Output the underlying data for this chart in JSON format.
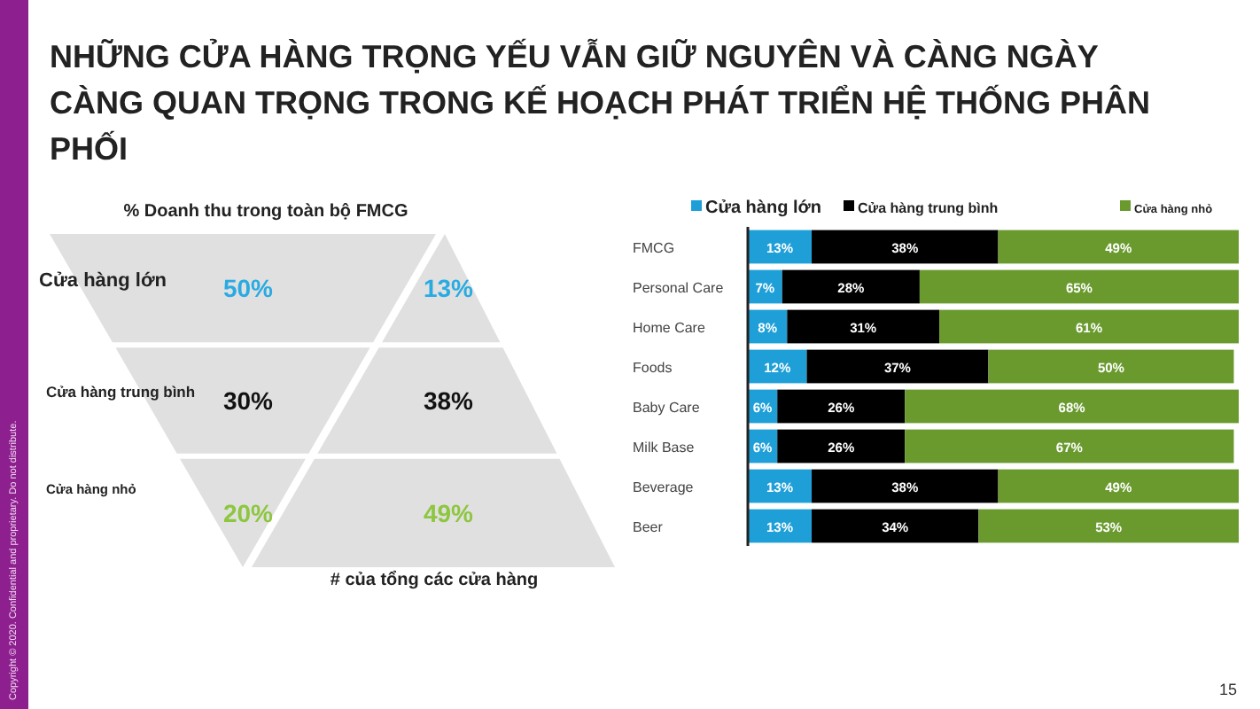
{
  "chart_data": [
    {
      "type": "other",
      "title": "NHỮNG CỬA HÀNG TRỌNG YẾU VẪN GIỮ NGUYÊN VÀ CÀNG NGÀY CÀNG QUAN TRỌNG TRONG KẾ HOẠCH PHÁT TRIỂN HỆ THỐNG PHÂN PHỐI",
      "subtitle": "% Doanh thu trong toàn bộ FMCG",
      "xlabel": "# của tổng các cửa hàng",
      "categories": [
        "Cửa hàng lớn",
        "Cửa hàng trung bình",
        "Cửa hàng nhỏ"
      ],
      "colors": [
        "#29abe2",
        "#111111",
        "#8dc63f"
      ],
      "series": [
        {
          "values": [
            50,
            30,
            20
          ],
          "value_labels": [
            "50%",
            "30%",
            "20%"
          ]
        },
        {
          "values": [
            13,
            38,
            49
          ],
          "value_labels": [
            "13%",
            "38%",
            "49%"
          ]
        }
      ],
      "annotations": [
        "Copyright © 2020. Confidential and proprietary. Do not distribute."
      ]
    },
    {
      "type": "bar",
      "orientation": "horizontal",
      "stacked": true,
      "legend": "top",
      "tick_labels": "y",
      "xlim": [
        0,
        100
      ],
      "categories": [
        "FMCG",
        "Personal Care",
        "Home Care",
        "Foods",
        "Baby Care",
        "Milk Base",
        "Beverage",
        "Beer"
      ],
      "series": [
        {
          "name": "Cửa hàng lớn",
          "color": "#1e9fd8",
          "values": [
            13,
            7,
            8,
            12,
            6,
            6,
            13,
            13
          ],
          "value_labels": [
            "13%",
            "7%",
            "8%",
            "12%",
            "6%",
            "6%",
            "13%",
            "13%"
          ]
        },
        {
          "name": "Cửa hàng trung bình",
          "color": "#000000",
          "values": [
            38,
            28,
            31,
            37,
            26,
            26,
            38,
            34
          ],
          "value_labels": [
            "38%",
            "28%",
            "31%",
            "37%",
            "26%",
            "26%",
            "38%",
            "34%"
          ]
        },
        {
          "name": "Cửa hàng nhỏ",
          "color": "#6a9a2e",
          "values": [
            49,
            65,
            61,
            50,
            68,
            67,
            49,
            53
          ],
          "value_labels": [
            "49%",
            "65%",
            "61%",
            "50%",
            "68%",
            "67%",
            "49%",
            "53%"
          ]
        }
      ],
      "annotations": [
        "15"
      ]
    }
  ]
}
